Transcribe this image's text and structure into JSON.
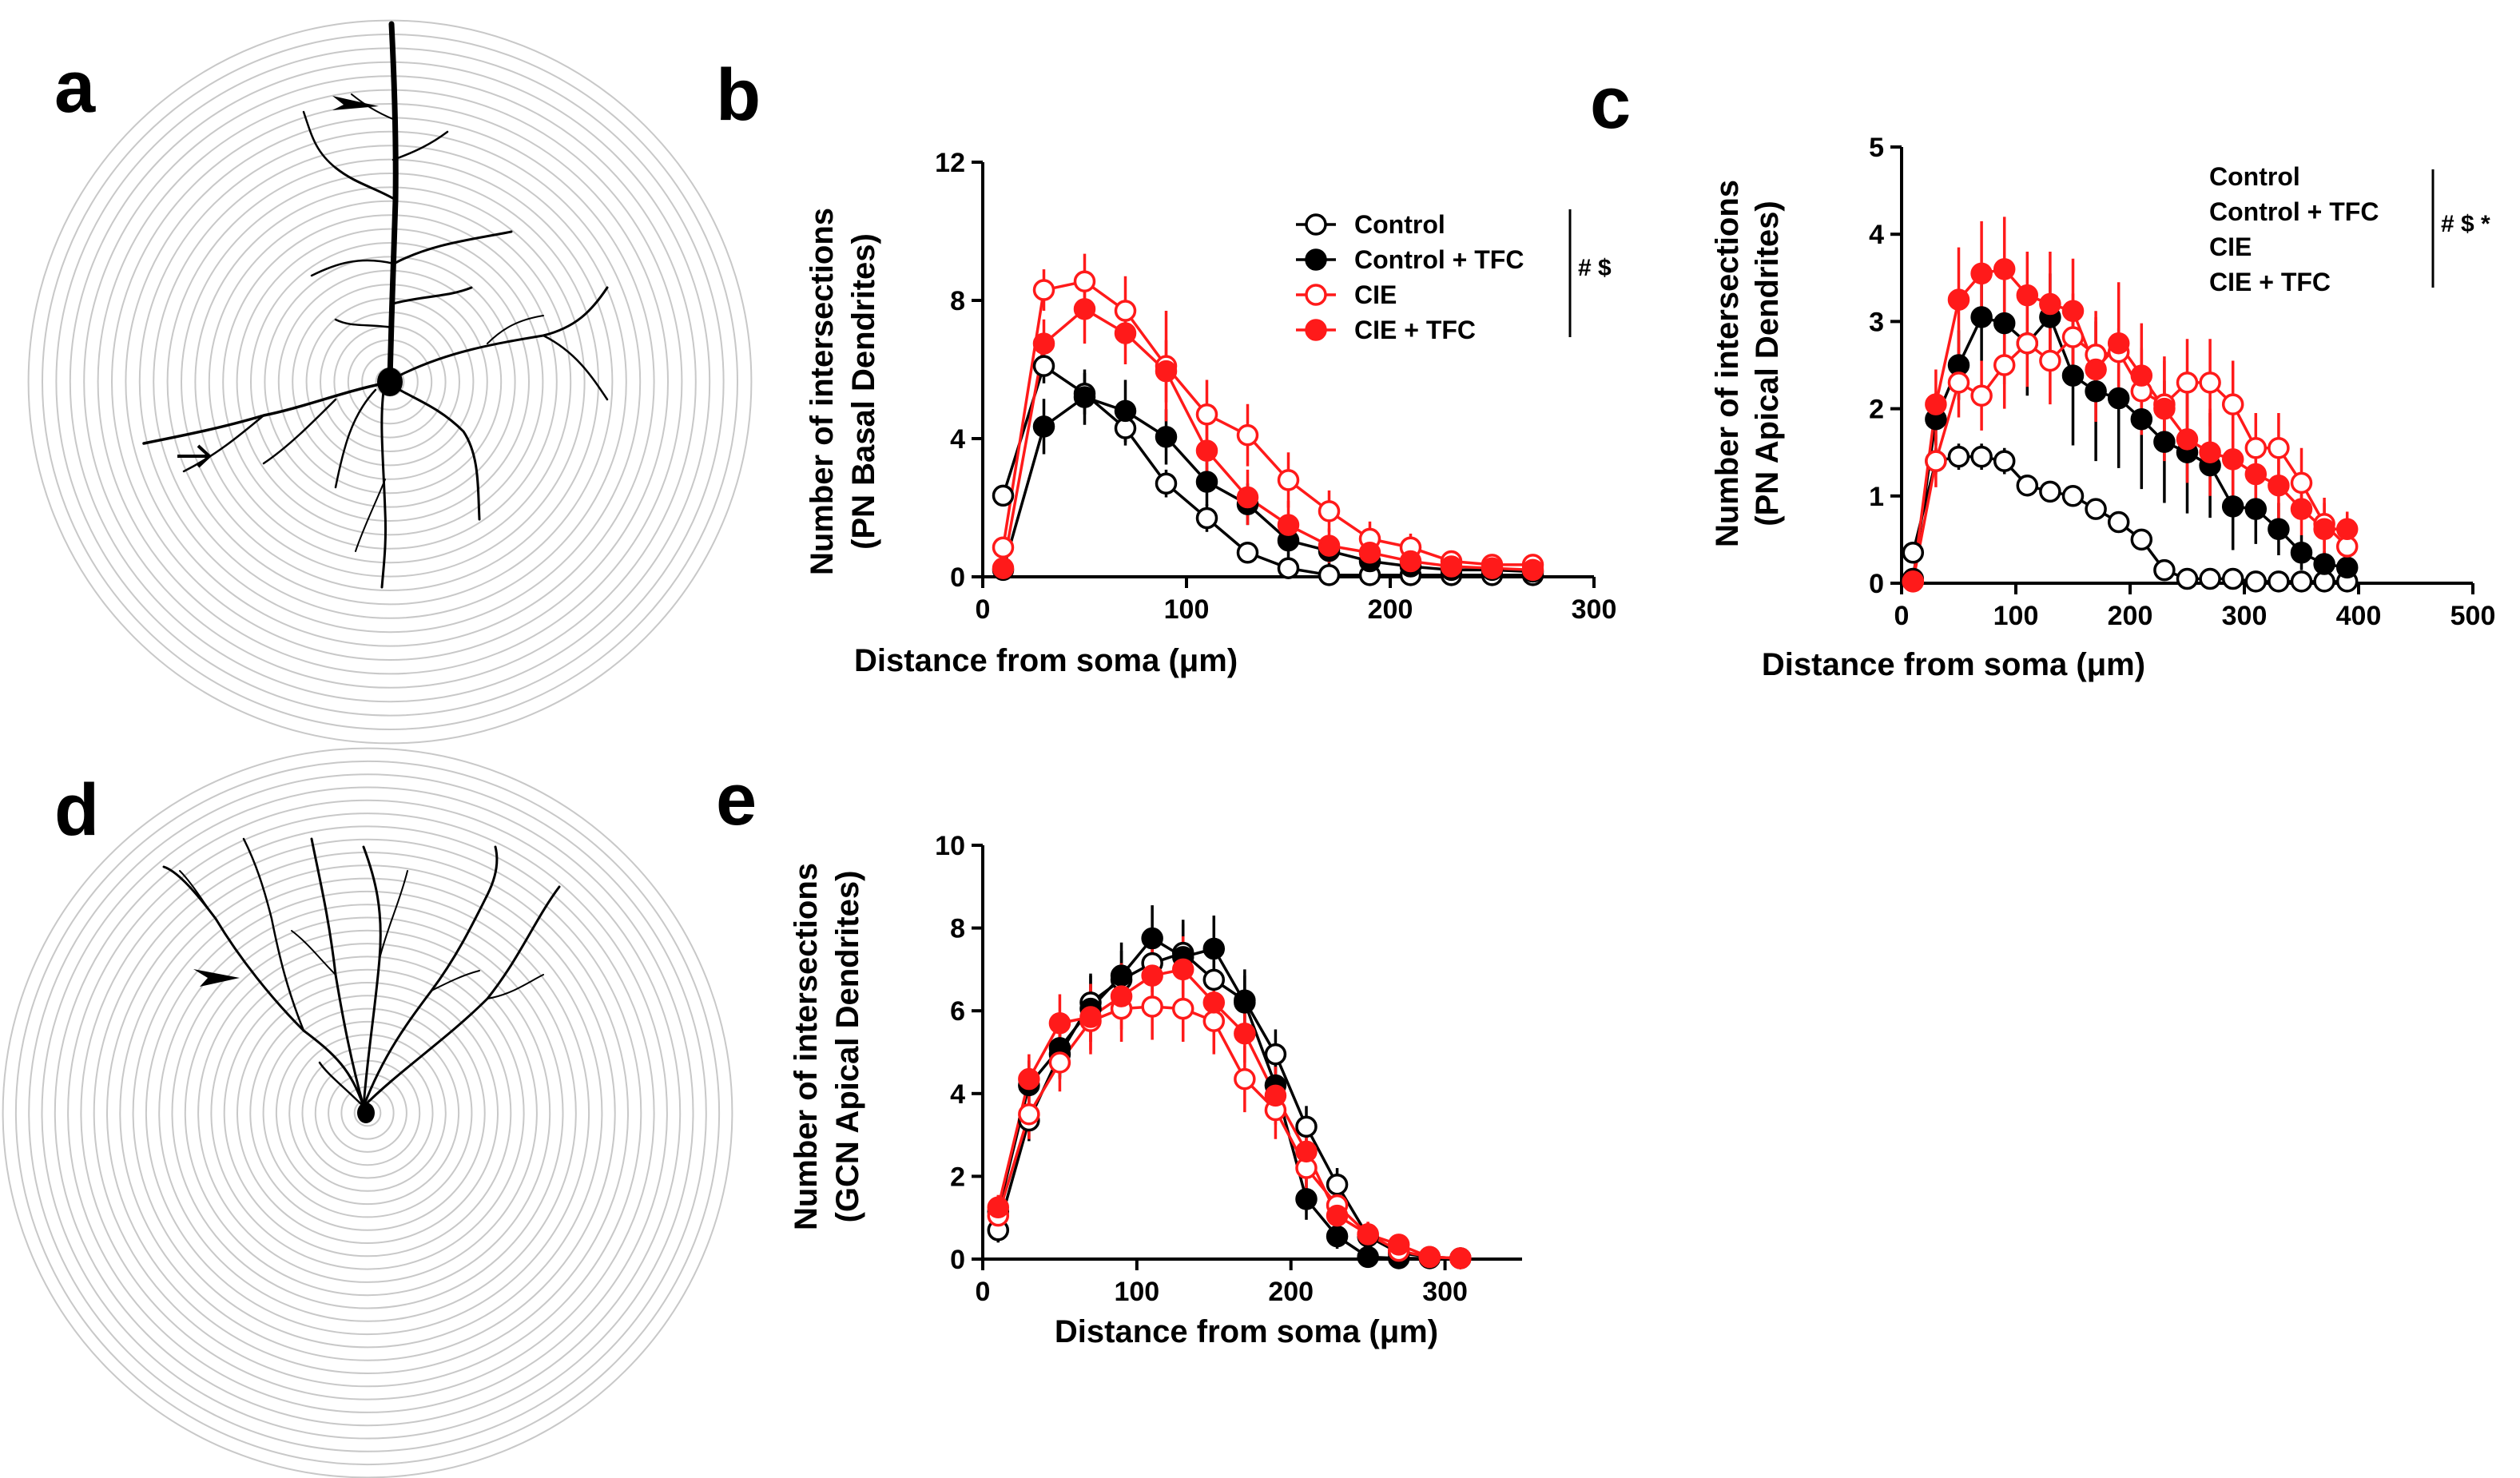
{
  "panels": {
    "a": "a",
    "b": "b",
    "c": "c",
    "d": "d",
    "e": "e"
  },
  "colors": {
    "control": "#000000",
    "cie": "#ff1a1a",
    "rings": "#c8c8c8"
  },
  "icons": {
    "a_arrowhead": "arrowhead-icon",
    "a_arrow": "arrow-icon",
    "d_arrowhead": "arrowhead-icon"
  },
  "chart_data": [
    {
      "id": "b",
      "type": "line",
      "xlabel": "Distance from soma (μm)",
      "ylabel_lines": [
        "Number of intersections",
        "(PN Basal Dendrites)"
      ],
      "xlim": [
        0,
        300
      ],
      "ylim": [
        0,
        12
      ],
      "xticks": [
        0,
        100,
        200,
        300
      ],
      "yticks": [
        0,
        4,
        8,
        12
      ],
      "xtick_labels": [
        "0",
        "100",
        "200",
        "300"
      ],
      "ytick_labels": [
        "0",
        "4",
        "8",
        "12"
      ],
      "x": [
        10,
        30,
        50,
        70,
        90,
        110,
        130,
        150,
        170,
        190,
        210,
        230,
        250,
        270
      ],
      "series": [
        {
          "name": "Control",
          "color": "#000000",
          "filled": false,
          "values": [
            2.35,
            6.1,
            5.3,
            4.3,
            2.7,
            1.7,
            0.7,
            0.25,
            0.05,
            0.05,
            0.05,
            0.05,
            0.05,
            0.05
          ],
          "err": [
            0.2,
            0.5,
            0.6,
            0.5,
            0.4,
            0.4,
            0.3,
            0.15,
            0,
            0,
            0,
            0,
            0,
            0
          ]
        },
        {
          "name": "Control + TFC",
          "color": "#000000",
          "filled": true,
          "values": [
            0.2,
            4.35,
            5.2,
            4.8,
            4.05,
            2.75,
            2.1,
            1.05,
            0.75,
            0.45,
            0.3,
            0.2,
            0.2,
            0.15
          ],
          "err": [
            0.1,
            0.8,
            0.8,
            0.9,
            0.8,
            0.7,
            0.6,
            0.5,
            0.4,
            0.3,
            0.2,
            0.15,
            0.1,
            0.1
          ]
        },
        {
          "name": "CIE",
          "color": "#ff1a1a",
          "filled": false,
          "values": [
            0.85,
            8.3,
            8.55,
            7.7,
            6.1,
            4.7,
            4.1,
            2.8,
            1.9,
            1.1,
            0.85,
            0.45,
            0.35,
            0.35
          ],
          "err": [
            0.2,
            0.6,
            0.8,
            1.0,
            1.6,
            1.0,
            0.9,
            0.8,
            0.6,
            0.5,
            0.4,
            0.2,
            0.15,
            0.1
          ]
        },
        {
          "name": "CIE + TFC",
          "color": "#ff1a1a",
          "filled": true,
          "values": [
            0.25,
            6.75,
            7.75,
            7.05,
            5.95,
            3.65,
            2.3,
            1.5,
            0.9,
            0.7,
            0.45,
            0.3,
            0.25,
            0.2
          ],
          "err": [
            0.1,
            0.7,
            1.0,
            0.9,
            0.9,
            0.9,
            0.8,
            0.7,
            0.5,
            0.4,
            0.3,
            0.2,
            0.1,
            0.1
          ]
        }
      ],
      "legend_position": "top-right",
      "significance": "# $"
    },
    {
      "id": "c",
      "type": "line",
      "xlabel": "Distance from soma (μm)",
      "ylabel_lines": [
        "Number of intersections",
        "(PN Apical Dendrites)"
      ],
      "xlim": [
        0,
        500
      ],
      "ylim": [
        0,
        5
      ],
      "xticks": [
        0,
        100,
        200,
        300,
        400,
        500
      ],
      "yticks": [
        0,
        1,
        2,
        3,
        4,
        5
      ],
      "xtick_labels": [
        "0",
        "100",
        "200",
        "300",
        "400",
        "500"
      ],
      "ytick_labels": [
        "0",
        "1",
        "2",
        "3",
        "4",
        "5"
      ],
      "x": [
        10,
        30,
        50,
        70,
        90,
        110,
        130,
        150,
        170,
        190,
        210,
        230,
        250,
        270,
        290,
        310,
        330,
        350,
        370,
        390
      ],
      "series": [
        {
          "name": "Control",
          "color": "#000000",
          "filled": false,
          "values": [
            0.35,
            1.4,
            1.45,
            1.45,
            1.4,
            1.12,
            1.05,
            1.0,
            0.85,
            0.7,
            0.5,
            0.15,
            0.05,
            0.05,
            0.05,
            0.02,
            0.02,
            0.02,
            0.02,
            0.02
          ],
          "err": [
            0.1,
            0.15,
            0.15,
            0.15,
            0.15,
            0.12,
            0.1,
            0.12,
            0.12,
            0.12,
            0.1,
            0.05,
            0,
            0,
            0,
            0,
            0,
            0,
            0,
            0
          ]
        },
        {
          "name": "Control + TFC",
          "color": "#000000",
          "filled": true,
          "values": [
            0.05,
            1.88,
            2.5,
            3.05,
            2.98,
            2.75,
            3.05,
            2.38,
            2.2,
            2.12,
            1.88,
            1.62,
            1.5,
            1.35,
            0.88,
            0.85,
            0.62,
            0.35,
            0.22,
            0.18
          ],
          "err": [
            0.05,
            0.3,
            0.4,
            0.5,
            0.7,
            0.6,
            0.5,
            0.8,
            0.8,
            0.8,
            0.8,
            0.7,
            0.7,
            0.6,
            0.5,
            0.4,
            0.3,
            0.2,
            0.15,
            0.1
          ]
        },
        {
          "name": "CIE",
          "color": "#ff1a1a",
          "filled": false,
          "values": [
            0.02,
            1.4,
            2.3,
            2.15,
            2.5,
            2.75,
            2.55,
            2.82,
            2.62,
            2.65,
            2.2,
            2.05,
            2.3,
            2.3,
            2.05,
            1.55,
            1.55,
            1.15,
            0.68,
            0.42
          ],
          "err": [
            0.02,
            0.3,
            0.4,
            0.4,
            0.5,
            0.5,
            0.5,
            0.5,
            0.5,
            0.6,
            0.5,
            0.5,
            0.5,
            0.5,
            0.5,
            0.4,
            0.4,
            0.4,
            0.3,
            0.2
          ]
        },
        {
          "name": "CIE + TFC",
          "color": "#ff1a1a",
          "filled": true,
          "values": [
            0.02,
            2.05,
            3.25,
            3.55,
            3.6,
            3.3,
            3.2,
            3.12,
            2.45,
            2.75,
            2.38,
            2.0,
            1.65,
            1.5,
            1.42,
            1.25,
            1.12,
            0.85,
            0.62,
            0.62
          ],
          "err": [
            0.02,
            0.4,
            0.6,
            0.6,
            0.6,
            0.5,
            0.6,
            0.6,
            0.6,
            0.7,
            0.6,
            0.6,
            0.5,
            0.5,
            0.5,
            0.4,
            0.4,
            0.3,
            0.3,
            0.2
          ]
        }
      ],
      "legend_position": "top-right",
      "legend_names": [
        "Control",
        "Control + TFC",
        "CIE",
        "CIE + TFC"
      ],
      "significance": "# $ *"
    },
    {
      "id": "e",
      "type": "line",
      "xlabel": "Distance from soma (μm)",
      "ylabel_lines": [
        "Number of intersections",
        "(GCN Apical Dendrites)"
      ],
      "xlim": [
        0,
        350
      ],
      "ylim": [
        0,
        10
      ],
      "xticks": [
        0,
        100,
        200,
        300
      ],
      "yticks": [
        0,
        2,
        4,
        6,
        8,
        10
      ],
      "xtick_labels": [
        "0",
        "100",
        "200",
        "300"
      ],
      "ytick_labels": [
        "0",
        "2",
        "4",
        "6",
        "8",
        "10"
      ],
      "x": [
        10,
        30,
        50,
        70,
        90,
        110,
        130,
        150,
        170,
        190,
        210,
        230,
        250,
        270,
        290,
        310
      ],
      "series": [
        {
          "name": "Control",
          "color": "#000000",
          "filled": false,
          "values": [
            0.7,
            3.35,
            4.95,
            6.2,
            6.75,
            7.15,
            7.4,
            6.75,
            6.25,
            4.95,
            3.2,
            1.8,
            0.55,
            0.15,
            0.05,
            0.02
          ],
          "err": [
            0.3,
            0.5,
            0.6,
            0.7,
            0.7,
            0.7,
            0.7,
            0.7,
            0.6,
            0.6,
            0.5,
            0.4,
            0.2,
            0.1,
            0,
            0
          ]
        },
        {
          "name": "Control + TFC",
          "color": "#000000",
          "filled": true,
          "values": [
            1.15,
            4.2,
            5.1,
            6.05,
            6.85,
            7.75,
            7.3,
            7.5,
            6.2,
            4.2,
            1.45,
            0.55,
            0.05,
            0.02,
            0.02,
            0.02
          ],
          "err": [
            0.3,
            0.6,
            0.7,
            0.8,
            0.8,
            0.8,
            0.9,
            0.8,
            0.8,
            0.7,
            0.5,
            0.3,
            0.05,
            0,
            0,
            0
          ]
        },
        {
          "name": "CIE",
          "color": "#ff1a1a",
          "filled": false,
          "values": [
            1.05,
            3.5,
            4.75,
            5.75,
            6.05,
            6.1,
            6.05,
            5.75,
            4.35,
            3.6,
            2.2,
            1.3,
            0.6,
            0.2,
            0.05,
            0.02
          ],
          "err": [
            0.3,
            0.6,
            0.7,
            0.8,
            0.8,
            0.8,
            0.8,
            0.8,
            0.8,
            0.7,
            0.6,
            0.4,
            0.3,
            0.1,
            0,
            0
          ]
        },
        {
          "name": "CIE + TFC",
          "color": "#ff1a1a",
          "filled": true,
          "values": [
            1.25,
            4.35,
            5.7,
            5.85,
            6.35,
            6.85,
            7.0,
            6.2,
            5.45,
            3.95,
            2.6,
            1.05,
            0.6,
            0.35,
            0.05,
            0.02
          ],
          "err": [
            0.3,
            0.6,
            0.7,
            0.8,
            0.8,
            0.8,
            0.8,
            0.8,
            0.7,
            0.7,
            0.5,
            0.4,
            0.3,
            0.2,
            0,
            0
          ]
        }
      ]
    }
  ]
}
